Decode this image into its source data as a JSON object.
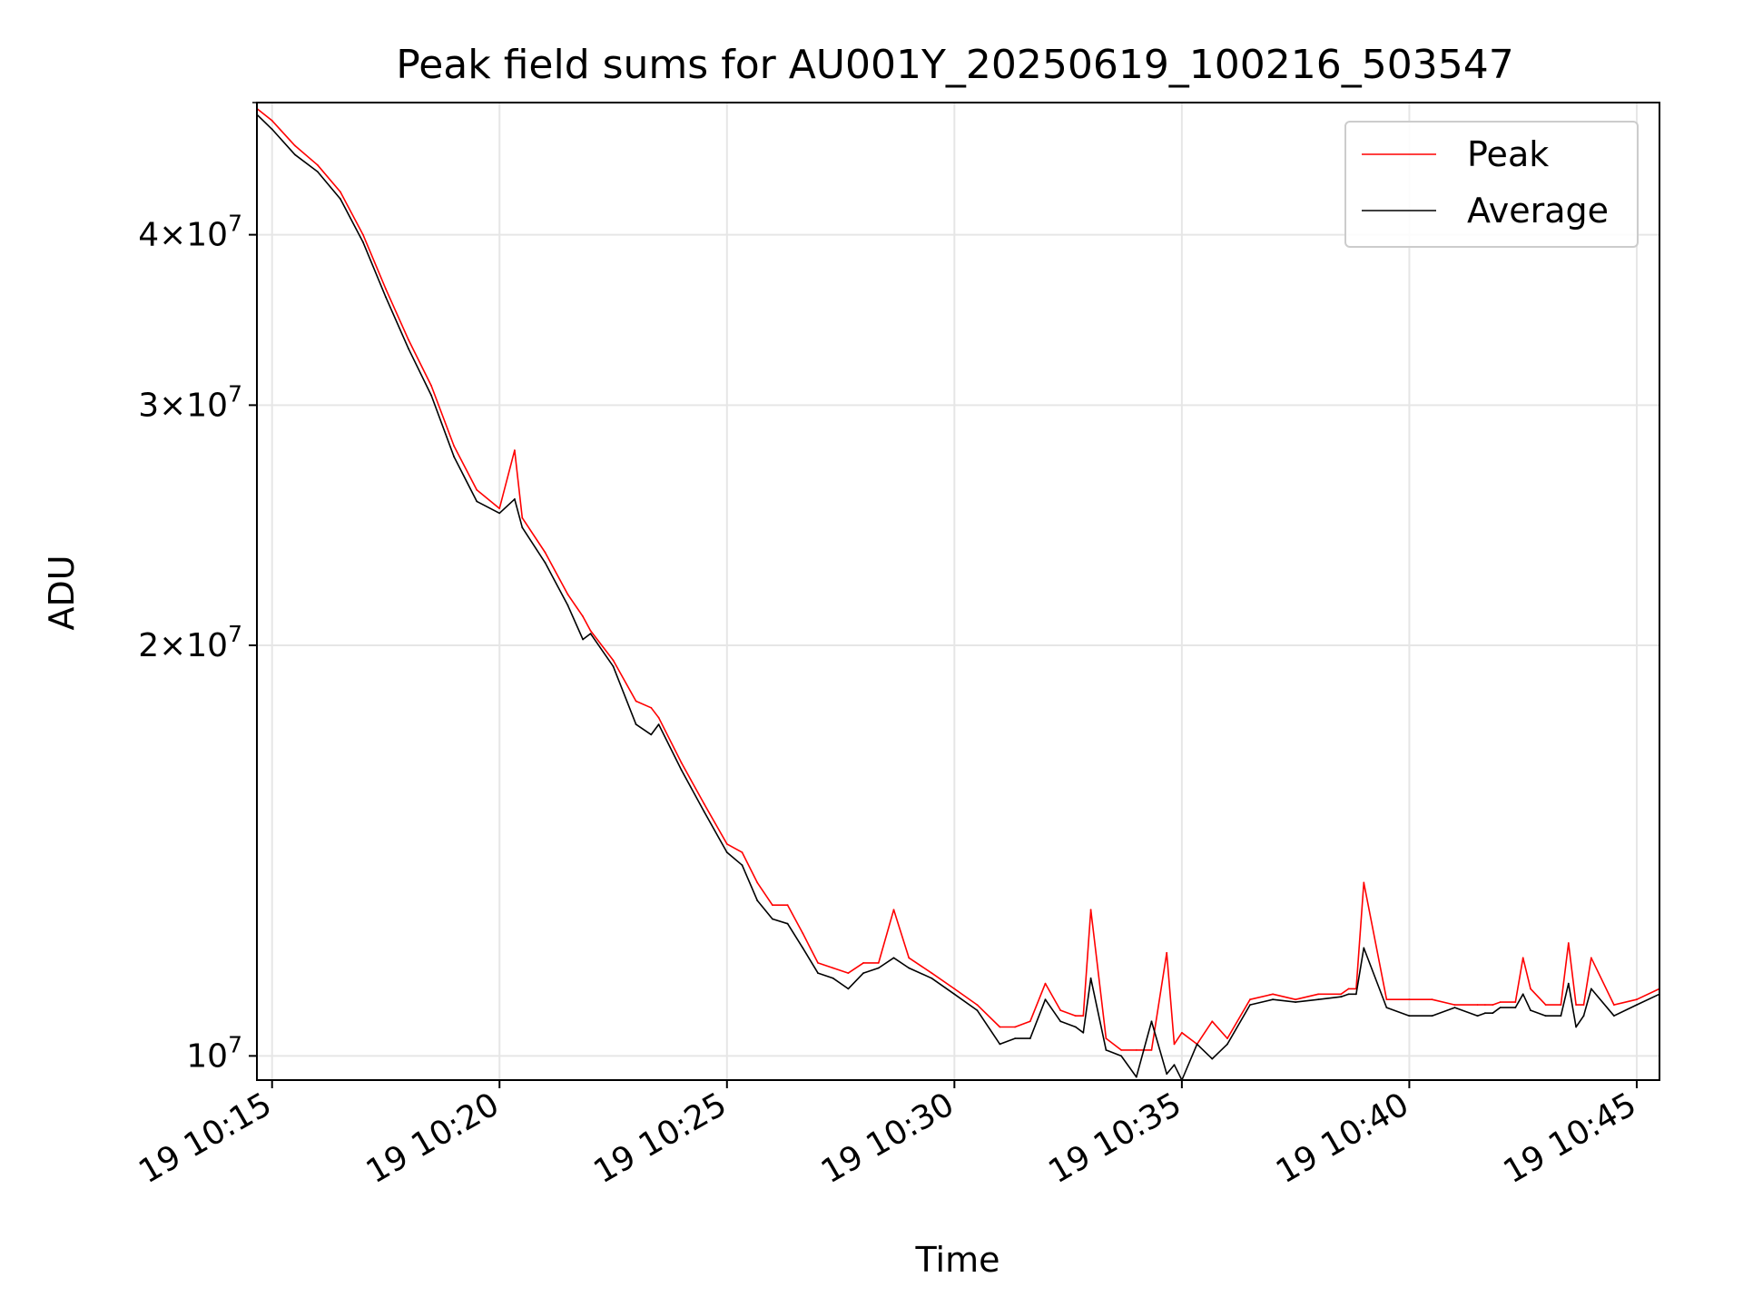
{
  "chart_data": {
    "type": "line",
    "title": "Peak field sums for AU001Y_20250619_100216_503547",
    "xlabel": "Time",
    "ylabel": "ADU",
    "yscale": "log",
    "grid": true,
    "legend_position": "top-right",
    "xlim": [
      "19 10:14:40",
      "19 10:45:30"
    ],
    "ylim": [
      9600000,
      50000000
    ],
    "x_ticks": [
      "19 10:15",
      "19 10:20",
      "19 10:25",
      "19 10:30",
      "19 10:35",
      "19 10:40",
      "19 10:45"
    ],
    "y_ticks": [
      {
        "value": 10000000,
        "mantissa": "",
        "base": "10",
        "exp": "7"
      },
      {
        "value": 20000000,
        "mantissa": "2",
        "base": "10",
        "exp": "7"
      },
      {
        "value": 30000000,
        "mantissa": "3",
        "base": "10",
        "exp": "7"
      },
      {
        "value": 40000000,
        "mantissa": "4",
        "base": "10",
        "exp": "7"
      }
    ],
    "x": [
      "19 10:14:40",
      "19 10:15:00",
      "19 10:15:30",
      "19 10:16:00",
      "19 10:16:30",
      "19 10:17:00",
      "19 10:17:30",
      "19 10:18:00",
      "19 10:18:30",
      "19 10:19:00",
      "19 10:19:30",
      "19 10:20:00",
      "19 10:20:20",
      "19 10:20:30",
      "19 10:21:00",
      "19 10:21:30",
      "19 10:21:50",
      "19 10:22:00",
      "19 10:22:30",
      "19 10:23:00",
      "19 10:23:20",
      "19 10:23:30",
      "19 10:24:00",
      "19 10:24:30",
      "19 10:25:00",
      "19 10:25:20",
      "19 10:25:40",
      "19 10:26:00",
      "19 10:26:20",
      "19 10:26:40",
      "19 10:27:00",
      "19 10:27:20",
      "19 10:27:40",
      "19 10:28:00",
      "19 10:28:20",
      "19 10:28:40",
      "19 10:29:00",
      "19 10:29:30",
      "19 10:30:00",
      "19 10:30:30",
      "19 10:31:00",
      "19 10:31:20",
      "19 10:31:40",
      "19 10:32:00",
      "19 10:32:20",
      "19 10:32:40",
      "19 10:32:50",
      "19 10:33:00",
      "19 10:33:20",
      "19 10:33:40",
      "19 10:34:00",
      "19 10:34:20",
      "19 10:34:40",
      "19 10:34:50",
      "19 10:35:00",
      "19 10:35:20",
      "19 10:35:40",
      "19 10:36:00",
      "19 10:36:30",
      "19 10:37:00",
      "19 10:37:30",
      "19 10:38:00",
      "19 10:38:30",
      "19 10:38:40",
      "19 10:38:50",
      "19 10:39:00",
      "19 10:39:30",
      "19 10:40:00",
      "19 10:40:30",
      "19 10:41:00",
      "19 10:41:30",
      "19 10:41:40",
      "19 10:41:50",
      "19 10:42:00",
      "19 10:42:20",
      "19 10:42:30",
      "19 10:42:40",
      "19 10:43:00",
      "19 10:43:20",
      "19 10:43:30",
      "19 10:43:40",
      "19 10:43:50",
      "19 10:44:00",
      "19 10:44:30",
      "19 10:45:00",
      "19 10:45:30"
    ],
    "series": [
      {
        "name": "Peak",
        "color": "#ff0000",
        "values": [
          49500000,
          48500000,
          46500000,
          45000000,
          43000000,
          40000000,
          36500000,
          33500000,
          31000000,
          28000000,
          26000000,
          25200000,
          27800000,
          24800000,
          23400000,
          21800000,
          21000000,
          20500000,
          19500000,
          18200000,
          18000000,
          17700000,
          16400000,
          15300000,
          14300000,
          14100000,
          13400000,
          12900000,
          12900000,
          12300000,
          11700000,
          11600000,
          11500000,
          11700000,
          11700000,
          12800000,
          11800000,
          11500000,
          11200000,
          10900000,
          10500000,
          10500000,
          10600000,
          11300000,
          10800000,
          10700000,
          10700000,
          12800000,
          10300000,
          10100000,
          10100000,
          10100000,
          11900000,
          10200000,
          10400000,
          10200000,
          10600000,
          10300000,
          11000000,
          11100000,
          11000000,
          11100000,
          11100000,
          11200000,
          11200000,
          13400000,
          11000000,
          11000000,
          11000000,
          10900000,
          10900000,
          10900000,
          10900000,
          10950000,
          10950000,
          11800000,
          11200000,
          10900000,
          10900000,
          12100000,
          10900000,
          10900000,
          11800000,
          10900000,
          11000000,
          11200000
        ]
      },
      {
        "name": "Average",
        "color": "#000000",
        "values": [
          49000000,
          47800000,
          45800000,
          44500000,
          42500000,
          39500000,
          36000000,
          33000000,
          30500000,
          27500000,
          25500000,
          25000000,
          25600000,
          24400000,
          23000000,
          21400000,
          20200000,
          20400000,
          19300000,
          17500000,
          17200000,
          17500000,
          16200000,
          15100000,
          14100000,
          13800000,
          13000000,
          12600000,
          12500000,
          12000000,
          11500000,
          11400000,
          11200000,
          11500000,
          11600000,
          11800000,
          11600000,
          11400000,
          11100000,
          10800000,
          10200000,
          10300000,
          10300000,
          11000000,
          10600000,
          10500000,
          10400000,
          11400000,
          10100000,
          10000000,
          9650000,
          10600000,
          9700000,
          9850000,
          9600000,
          10200000,
          9950000,
          10200000,
          10900000,
          11000000,
          10950000,
          11000000,
          11050000,
          11100000,
          11100000,
          12000000,
          10850000,
          10700000,
          10700000,
          10850000,
          10700000,
          10750000,
          10750000,
          10850000,
          10850000,
          11100000,
          10800000,
          10700000,
          10700000,
          11300000,
          10500000,
          10700000,
          11200000,
          10700000,
          10900000,
          11100000
        ]
      }
    ]
  }
}
